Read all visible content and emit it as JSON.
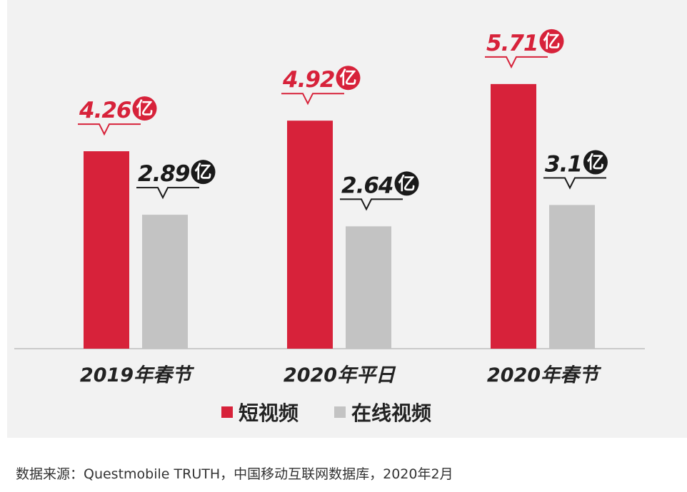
{
  "chart_data": {
    "type": "bar",
    "categories": [
      "2019年春节",
      "2020年平日",
      "2020年春节"
    ],
    "series": [
      {
        "name": "短视频",
        "values": [
          4.26,
          4.92,
          5.71
        ],
        "labels": [
          "4.26",
          "4.92",
          "5.71"
        ],
        "color": "#d7223a"
      },
      {
        "name": "在线视频",
        "values": [
          2.89,
          2.64,
          3.1
        ],
        "labels": [
          "2.89",
          "2.64",
          "3.1"
        ],
        "color": "#c3c3c3"
      }
    ],
    "value_unit": "亿",
    "ylim": [
      0,
      6.6
    ],
    "title": "",
    "xlabel": "",
    "ylabel": "",
    "legend_position": "bottom"
  },
  "colors": {
    "label_red": "#d7223a",
    "label_black": "#1a1a1a",
    "panel_bg": "#f2f2f2"
  },
  "source_text": "数据来源：Questmobile TRUTH，中国移动互联网数据库，2020年2月"
}
